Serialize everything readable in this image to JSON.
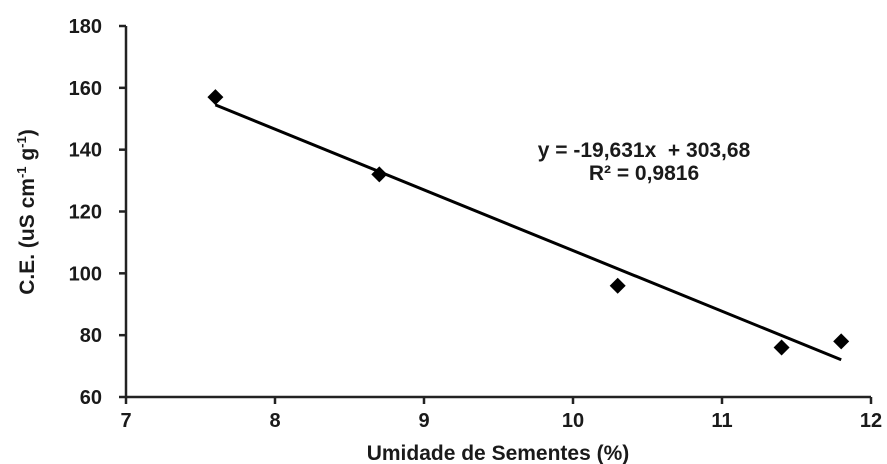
{
  "chart_data": {
    "type": "scatter",
    "xlabel": "Umidade de Sementes (%)",
    "ylabel": {
      "prefix": "C.E. (uS cm",
      "sup1": "-1",
      "mid": " g",
      "sup2": "-1",
      "suffix": ")"
    },
    "xlim": [
      7,
      12
    ],
    "ylim": [
      60,
      180
    ],
    "xticks": [
      "7",
      "8",
      "9",
      "10",
      "11",
      "12"
    ],
    "yticks": [
      "60",
      "80",
      "100",
      "120",
      "140",
      "160",
      "180"
    ],
    "points": [
      {
        "x": 7.6,
        "y": 157
      },
      {
        "x": 8.7,
        "y": 132
      },
      {
        "x": 10.3,
        "y": 96
      },
      {
        "x": 11.4,
        "y": 76
      },
      {
        "x": 11.8,
        "y": 78
      }
    ],
    "trendline": {
      "slope": -19.631,
      "intercept": 303.68,
      "x_start": 7.6,
      "x_end": 11.8
    },
    "equation": "y = -19,631x  + 303,68",
    "r_squared": "R² = 0,9816",
    "grid": false,
    "legend": "none",
    "marker_color": "#000000",
    "line_color": "#000000"
  }
}
